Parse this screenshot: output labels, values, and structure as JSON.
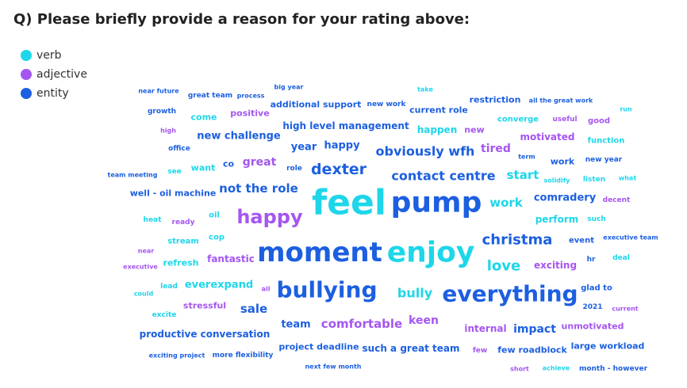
{
  "title": "Q) Please briefly provide a reason for your rating above:",
  "legend": [
    {
      "label": "verb",
      "color": "#1ed6ea"
    },
    {
      "label": "adjective",
      "color": "#a556f0"
    },
    {
      "label": "entity",
      "color": "#1c5fe0"
    }
  ],
  "words": [
    {
      "text": "near future",
      "type": "entity"
    },
    {
      "text": "great team",
      "type": "entity"
    },
    {
      "text": "process",
      "type": "entity"
    },
    {
      "text": "big year",
      "type": "entity"
    },
    {
      "text": "take",
      "type": "verb"
    },
    {
      "text": "restriction",
      "type": "entity"
    },
    {
      "text": "all the great work",
      "type": "entity"
    },
    {
      "text": "growth",
      "type": "entity"
    },
    {
      "text": "come",
      "type": "verb"
    },
    {
      "text": "positive",
      "type": "adjective"
    },
    {
      "text": "additional support",
      "type": "entity"
    },
    {
      "text": "new work",
      "type": "entity"
    },
    {
      "text": "current role",
      "type": "entity"
    },
    {
      "text": "run",
      "type": "verb"
    },
    {
      "text": "high",
      "type": "adjective"
    },
    {
      "text": "high level management",
      "type": "entity"
    },
    {
      "text": "happen",
      "type": "verb"
    },
    {
      "text": "new",
      "type": "adjective"
    },
    {
      "text": "converge",
      "type": "verb"
    },
    {
      "text": "useful",
      "type": "adjective"
    },
    {
      "text": "good",
      "type": "adjective"
    },
    {
      "text": "office",
      "type": "entity"
    },
    {
      "text": "new challenge",
      "type": "entity"
    },
    {
      "text": "motivated",
      "type": "adjective"
    },
    {
      "text": "function",
      "type": "verb"
    },
    {
      "text": "year",
      "type": "entity"
    },
    {
      "text": "happy",
      "type": "entity"
    },
    {
      "text": "obviously wfh",
      "type": "entity"
    },
    {
      "text": "tired",
      "type": "adjective"
    },
    {
      "text": "term",
      "type": "entity"
    },
    {
      "text": "work",
      "type": "entity"
    },
    {
      "text": "new year",
      "type": "entity"
    },
    {
      "text": "team meeting",
      "type": "entity"
    },
    {
      "text": "see",
      "type": "verb"
    },
    {
      "text": "want",
      "type": "verb"
    },
    {
      "text": "co",
      "type": "entity"
    },
    {
      "text": "great",
      "type": "adjective"
    },
    {
      "text": "role",
      "type": "entity"
    },
    {
      "text": "dexter",
      "type": "entity"
    },
    {
      "text": "contact centre",
      "type": "entity"
    },
    {
      "text": "start",
      "type": "verb"
    },
    {
      "text": "solidify",
      "type": "verb"
    },
    {
      "text": "listen",
      "type": "verb"
    },
    {
      "text": "what",
      "type": "verb"
    },
    {
      "text": "well - oil machine",
      "type": "entity"
    },
    {
      "text": "not the role",
      "type": "entity"
    },
    {
      "text": "feel",
      "type": "verb"
    },
    {
      "text": "pump",
      "type": "entity"
    },
    {
      "text": "work",
      "type": "verb"
    },
    {
      "text": "comradery",
      "type": "entity"
    },
    {
      "text": "decent",
      "type": "adjective"
    },
    {
      "text": "heat",
      "type": "verb"
    },
    {
      "text": "ready",
      "type": "adjective"
    },
    {
      "text": "oil",
      "type": "verb"
    },
    {
      "text": "happy",
      "type": "adjective"
    },
    {
      "text": "perform",
      "type": "verb"
    },
    {
      "text": "such",
      "type": "verb"
    },
    {
      "text": "stream",
      "type": "verb"
    },
    {
      "text": "cop",
      "type": "verb"
    },
    {
      "text": "christma",
      "type": "entity"
    },
    {
      "text": "event",
      "type": "entity"
    },
    {
      "text": "executive team",
      "type": "entity"
    },
    {
      "text": "near",
      "type": "adjective"
    },
    {
      "text": "moment",
      "type": "entity"
    },
    {
      "text": "enjoy",
      "type": "verb"
    },
    {
      "text": "executive",
      "type": "adjective"
    },
    {
      "text": "refresh",
      "type": "verb"
    },
    {
      "text": "fantastic",
      "type": "adjective"
    },
    {
      "text": "love",
      "type": "verb"
    },
    {
      "text": "exciting",
      "type": "adjective"
    },
    {
      "text": "hr",
      "type": "entity"
    },
    {
      "text": "deal",
      "type": "verb"
    },
    {
      "text": "lead",
      "type": "verb"
    },
    {
      "text": "everexpand",
      "type": "verb"
    },
    {
      "text": "all",
      "type": "adjective"
    },
    {
      "text": "bullying",
      "type": "entity"
    },
    {
      "text": "bully",
      "type": "verb"
    },
    {
      "text": "everything",
      "type": "entity"
    },
    {
      "text": "glad to",
      "type": "entity"
    },
    {
      "text": "could",
      "type": "verb"
    },
    {
      "text": "stressful",
      "type": "adjective"
    },
    {
      "text": "sale",
      "type": "entity"
    },
    {
      "text": "2021",
      "type": "entity"
    },
    {
      "text": "current",
      "type": "adjective"
    },
    {
      "text": "excite",
      "type": "verb"
    },
    {
      "text": "team",
      "type": "entity"
    },
    {
      "text": "comfortable",
      "type": "adjective"
    },
    {
      "text": "keen",
      "type": "adjective"
    },
    {
      "text": "internal",
      "type": "adjective"
    },
    {
      "text": "impact",
      "type": "entity"
    },
    {
      "text": "unmotivated",
      "type": "adjective"
    },
    {
      "text": "productive conversation",
      "type": "entity"
    },
    {
      "text": "project deadline",
      "type": "entity"
    },
    {
      "text": "such a great team",
      "type": "entity"
    },
    {
      "text": "few",
      "type": "adjective"
    },
    {
      "text": "few roadblock",
      "type": "entity"
    },
    {
      "text": "large workload",
      "type": "entity"
    },
    {
      "text": "exciting project",
      "type": "entity"
    },
    {
      "text": "more flexibility",
      "type": "entity"
    },
    {
      "text": "next few month",
      "type": "entity"
    },
    {
      "text": "short",
      "type": "adjective"
    },
    {
      "text": "achieve",
      "type": "verb"
    },
    {
      "text": "month - however",
      "type": "entity"
    }
  ]
}
